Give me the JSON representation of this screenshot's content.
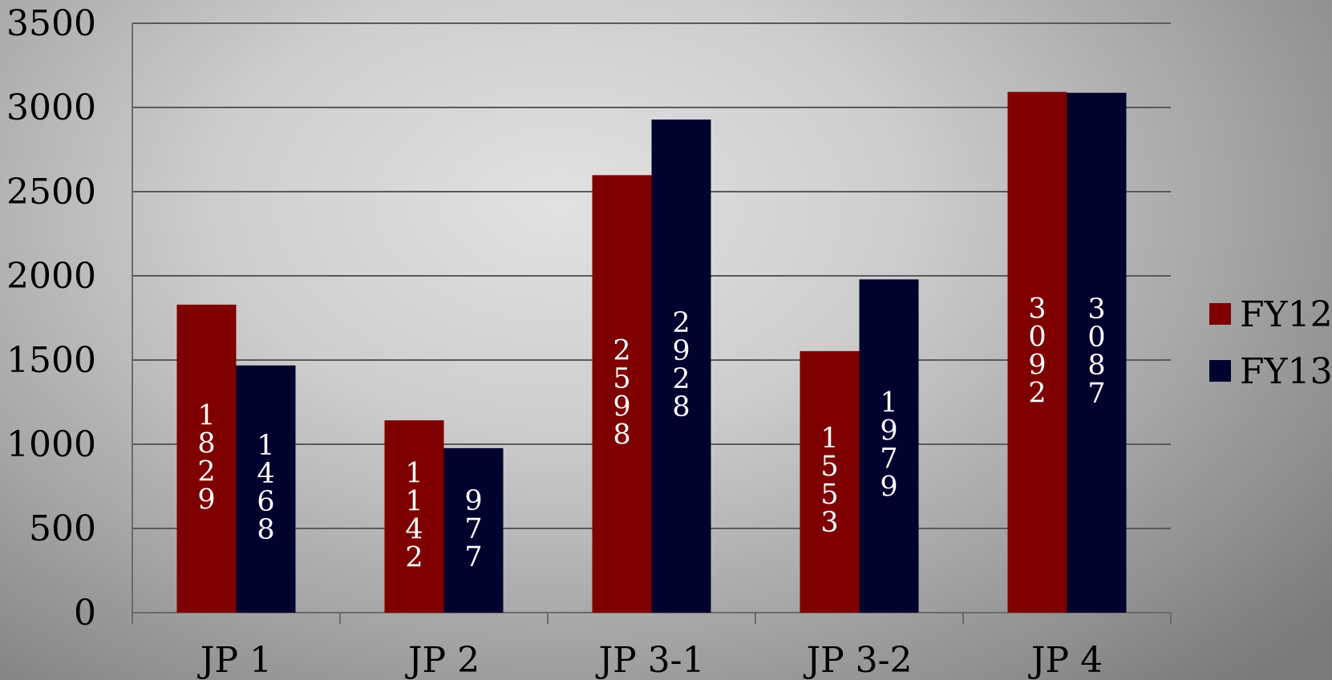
{
  "chart_data": {
    "type": "bar",
    "categories": [
      "JP 1",
      "JP 2",
      "JP 3-1",
      "JP 3-2",
      "JP 4"
    ],
    "series": [
      {
        "name": "FY12",
        "color": "#7f0000",
        "values": [
          1829,
          1142,
          2598,
          1553,
          3092
        ]
      },
      {
        "name": "FY13",
        "color": "#02022e",
        "values": [
          1468,
          977,
          2928,
          1979,
          3087
        ]
      }
    ],
    "data_labels": {
      "FY12": [
        "1829",
        "1142",
        "2598",
        "1553",
        "3092"
      ],
      "FY13": [
        "1468",
        "977",
        "2928",
        "1979",
        "3087"
      ]
    },
    "y_ticks": [
      "0",
      "500",
      "1000",
      "1500",
      "2000",
      "2500",
      "3000",
      "3500"
    ],
    "ylim": [
      0,
      3500
    ],
    "title": "",
    "xlabel": "",
    "ylabel": "",
    "grid": true,
    "legend_position": "right",
    "colors": {
      "gridline": "#5a5a5a",
      "axis": "#6a6a6a",
      "data_label_text": "#ffffff"
    }
  }
}
